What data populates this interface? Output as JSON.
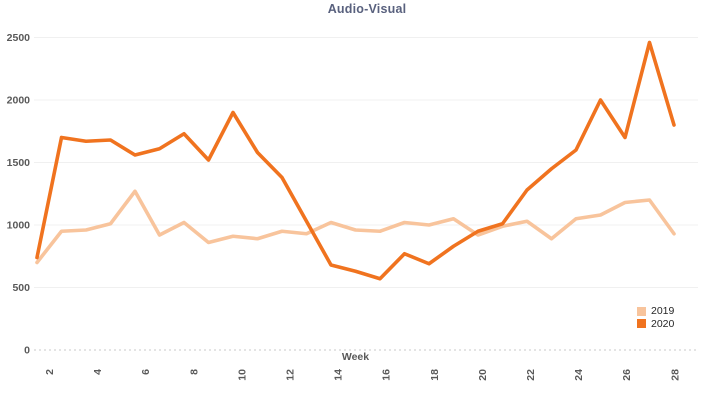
{
  "chart_data": {
    "type": "line",
    "title": "Audio-Visual",
    "xlabel": "Week",
    "ylabel": "",
    "x_weeks": [
      2,
      3,
      4,
      5,
      6,
      7,
      8,
      9,
      10,
      11,
      12,
      13,
      14,
      15,
      16,
      17,
      18,
      19,
      20,
      21,
      22,
      23,
      24,
      25,
      26,
      27,
      28
    ],
    "x_tick_labels": [
      "2",
      "4",
      "6",
      "8",
      "10",
      "12",
      "14",
      "16",
      "18",
      "20",
      "22",
      "24",
      "26",
      "28"
    ],
    "y_ticks": [
      0,
      500,
      1000,
      1500,
      2000,
      2500
    ],
    "ylim": [
      0,
      2500
    ],
    "grid": true,
    "legend_position": "bottom-right",
    "series": [
      {
        "name": "2019",
        "color": "#f8c49c",
        "values": [
          700,
          950,
          960,
          1010,
          1270,
          920,
          1020,
          860,
          910,
          890,
          950,
          930,
          1020,
          960,
          950,
          1020,
          1000,
          1050,
          920,
          990,
          1030,
          890,
          1050,
          1080,
          1180,
          1200,
          930
        ]
      },
      {
        "name": "2020",
        "color": "#f0731f",
        "values": [
          740,
          1700,
          1670,
          1680,
          1560,
          1610,
          1730,
          1520,
          1900,
          1580,
          1380,
          1030,
          680,
          630,
          570,
          770,
          690,
          830,
          950,
          1010,
          1280,
          1450,
          1600,
          2000,
          1700,
          2460,
          1800
        ]
      }
    ],
    "title_color": "#59617e",
    "axis_text_color": "#595959",
    "grid_color": "#f0f0f0",
    "zero_line_color": "#c9c9c9"
  }
}
